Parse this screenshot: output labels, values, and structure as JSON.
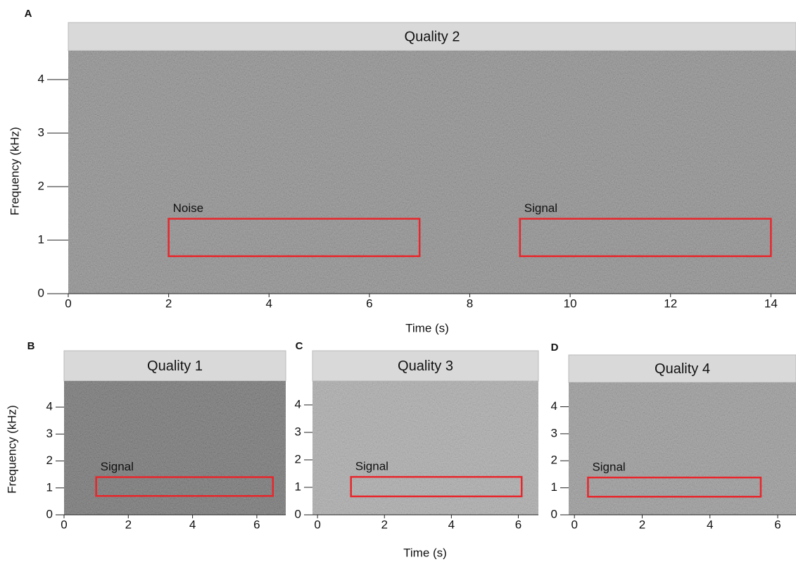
{
  "chart_data": [
    {
      "type": "spectrogram",
      "panel_label": "A",
      "title": "Quality 2",
      "xlabel": "Time (s)",
      "ylabel": "Frequency (kHz)",
      "xlim": [
        0,
        14.5
      ],
      "ylim": [
        0,
        4.54
      ],
      "xticks": [
        0,
        2,
        4,
        6,
        8,
        10,
        12,
        14
      ],
      "yticks": [
        0,
        1,
        2,
        3,
        4
      ],
      "boxes": [
        {
          "label": "Noise",
          "x": [
            2,
            7
          ],
          "y": [
            0.7,
            1.4
          ],
          "color": "#e8262b"
        },
        {
          "label": "Signal",
          "x": [
            9,
            14
          ],
          "y": [
            0.7,
            1.4
          ],
          "color": "#e8262b"
        }
      ]
    },
    {
      "type": "spectrogram",
      "panel_label": "B",
      "title": "Quality 1",
      "ylabel": "Frequency (kHz)",
      "xlim": [
        0,
        6.9
      ],
      "ylim": [
        0,
        4.97
      ],
      "xticks": [
        0,
        2,
        4,
        6
      ],
      "yticks": [
        0,
        1,
        2,
        3,
        4
      ],
      "boxes": [
        {
          "label": "Signal",
          "x": [
            1,
            6.5
          ],
          "y": [
            0.7,
            1.4
          ],
          "color": "#e8262b"
        }
      ]
    },
    {
      "type": "spectrogram",
      "panel_label": "C",
      "title": "Quality 3",
      "xlabel": "Time (s)",
      "xlim": [
        -0.15,
        6.6
      ],
      "ylim": [
        0,
        4.87
      ],
      "xticks": [
        0,
        2,
        4,
        6
      ],
      "yticks": [
        0,
        1,
        2,
        3,
        4
      ],
      "boxes": [
        {
          "label": "Signal",
          "x": [
            1,
            6.1
          ],
          "y": [
            0.67,
            1.38
          ],
          "color": "#e8262b"
        }
      ]
    },
    {
      "type": "spectrogram",
      "panel_label": "D",
      "title": "Quality 4",
      "xlim": [
        -0.17,
        6.54
      ],
      "ylim": [
        0,
        4.9
      ],
      "xticks": [
        0,
        2,
        4,
        6
      ],
      "yticks": [
        0,
        1,
        2,
        3,
        4
      ],
      "boxes": [
        {
          "label": "Signal",
          "x": [
            0.4,
            5.5
          ],
          "y": [
            0.67,
            1.38
          ],
          "color": "#e8262b"
        }
      ]
    }
  ]
}
